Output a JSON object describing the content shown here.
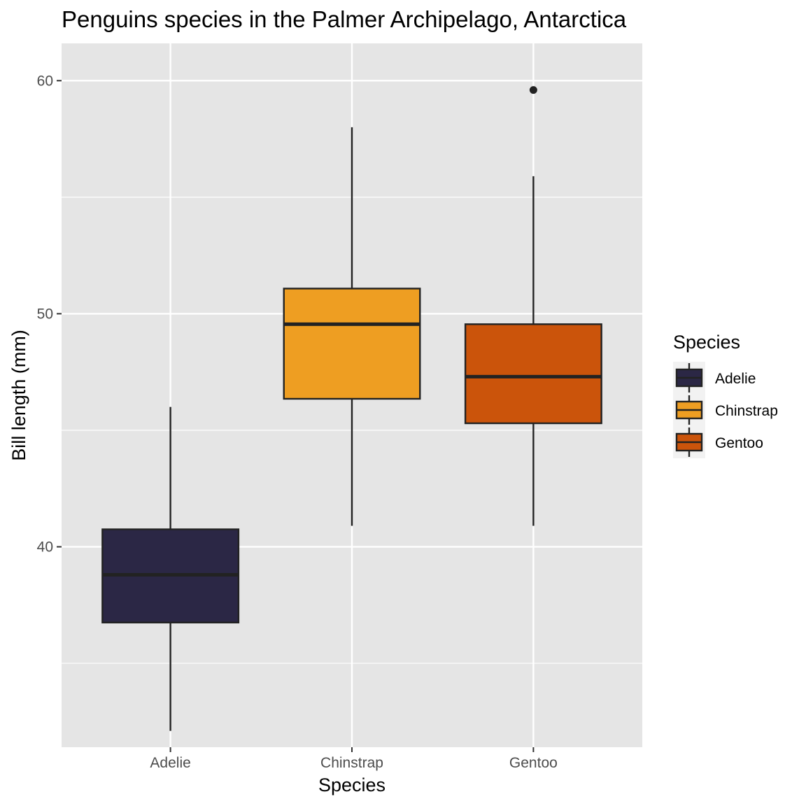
{
  "chart_data": {
    "type": "boxplot",
    "title": "Penguins species in the Palmer Archipelago, Antarctica",
    "xlabel": "Species",
    "ylabel": "Bill length (mm)",
    "categories": [
      "Adelie",
      "Chinstrap",
      "Gentoo"
    ],
    "ylim": [
      31.4,
      61.6
    ],
    "yticks": [
      40,
      50,
      60
    ],
    "grid": true,
    "legend": {
      "title": "Species",
      "position": "right",
      "entries": [
        "Adelie",
        "Chinstrap",
        "Gentoo"
      ]
    },
    "boxes": [
      {
        "category": "Adelie",
        "min": 32.1,
        "q1": 36.75,
        "median": 38.8,
        "q3": 40.75,
        "max": 46.0,
        "outliers": [],
        "color": "#2b2745"
      },
      {
        "category": "Chinstrap",
        "min": 40.9,
        "q1": 46.35,
        "median": 49.55,
        "q3": 51.08,
        "max": 58.0,
        "outliers": [],
        "color": "#ee9e22"
      },
      {
        "category": "Gentoo",
        "min": 40.9,
        "q1": 45.3,
        "median": 47.3,
        "q3": 49.55,
        "max": 55.9,
        "outliers": [
          59.6
        ],
        "color": "#cb540b"
      }
    ],
    "colors": {
      "panel": "#e5e5e5",
      "grid": "#ffffff",
      "line": "#222222"
    }
  }
}
